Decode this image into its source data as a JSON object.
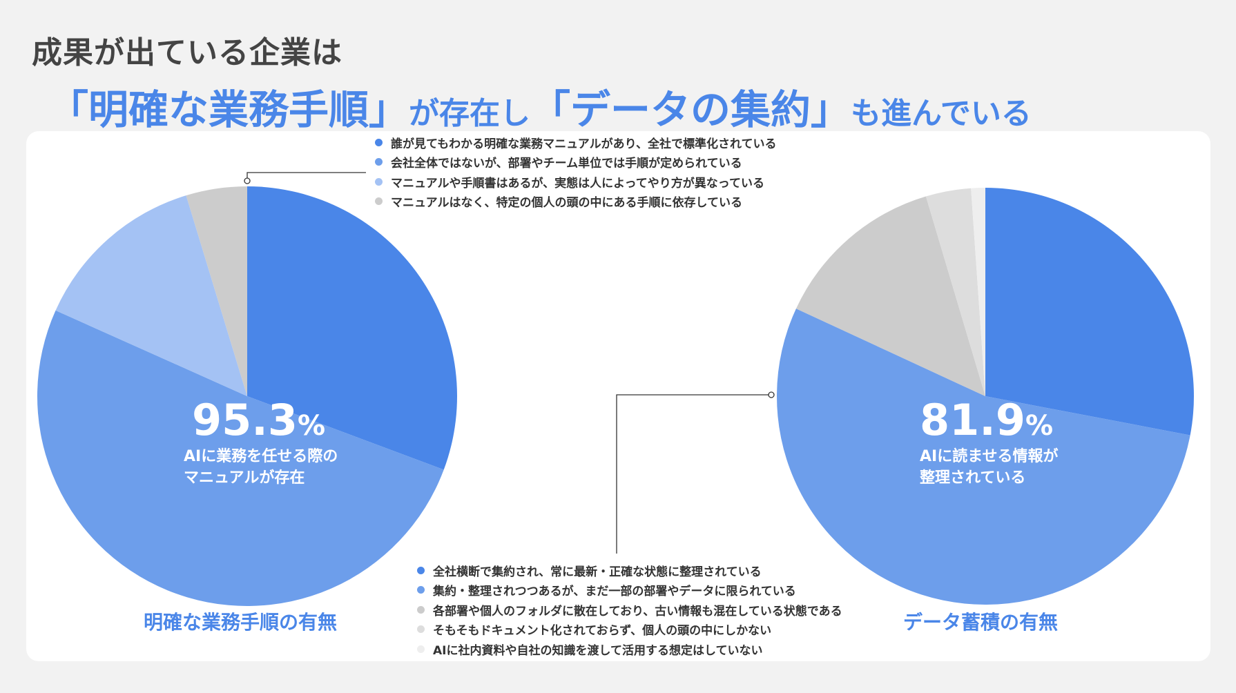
{
  "header": {
    "line1": "成果が出ている企業は",
    "line2": [
      {
        "text": "「明確な業務手順」",
        "size": "big"
      },
      {
        "text": "が存在し",
        "size": "small"
      },
      {
        "text": "「データの集約」",
        "size": "big"
      },
      {
        "text": "も進んでいる",
        "size": "small"
      }
    ]
  },
  "chart_data": [
    {
      "type": "pie",
      "title": "明確な業務手順の有無",
      "highlight": {
        "value": "95.3",
        "unit": "%",
        "label_lines": [
          "AIに業務を任せる際の",
          "マニュアルが存在"
        ]
      },
      "legend_placement": "top",
      "categories": [
        "誰が見てもわかる明確な業務マニュアルがあり、全社で標準化されている",
        "会社全体ではないが、部署やチーム単位では手順が定められている",
        "マニュアルや手順書はあるが、実態は人によってやり方が異なっている",
        "マニュアルはなく、特定の個人の頭の中にある手順に依存している"
      ],
      "values": [
        30.7,
        51.0,
        13.6,
        4.7
      ],
      "colors": [
        "#4a86e8",
        "#6d9eeb",
        "#a4c2f4",
        "#cccccc"
      ]
    },
    {
      "type": "pie",
      "title": "データ蓄積の有無",
      "highlight": {
        "value": "81.9",
        "unit": "%",
        "label_lines": [
          "AIに読ませる情報が",
          "整理されている"
        ]
      },
      "legend_placement": "bottom",
      "categories": [
        "全社横断で集約され、常に最新・正確な状態に整理されている",
        "集約・整理されつつあるが、まだ一部の部署やデータに限られている",
        "各部署や個人のフォルダに散在しており、古い情報も混在している状態である",
        "そもそもドキュメント化されておらず、個人の頭の中にしかない",
        "AIに社内資料や自社の知識を渡して活用する想定はしていない"
      ],
      "values": [
        28.0,
        53.9,
        13.5,
        3.5,
        1.1
      ],
      "colors": [
        "#4a86e8",
        "#6d9eeb",
        "#cccccc",
        "#dddddd",
        "#eeeeee"
      ]
    }
  ]
}
